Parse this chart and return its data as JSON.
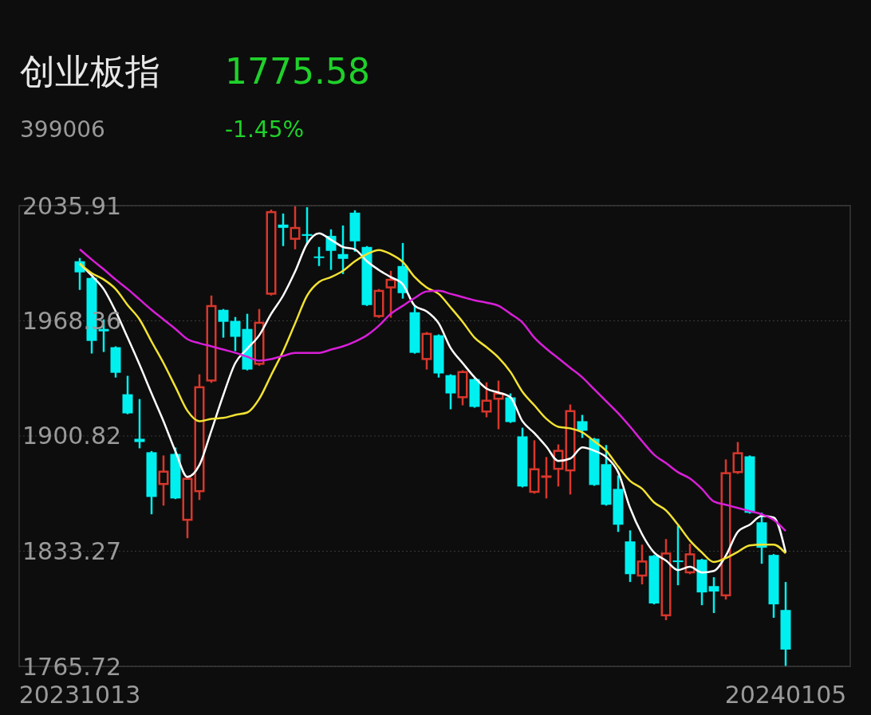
{
  "chart_data": {
    "type": "candlestick",
    "title": "创业板指",
    "subtitle": "399006",
    "annotations": [
      "1775.58",
      "-1.45%"
    ],
    "categories": [
      "20231013",
      null,
      null,
      null,
      null,
      null,
      null,
      null,
      null,
      null,
      null,
      null,
      null,
      null,
      null,
      null,
      null,
      null,
      null,
      null,
      null,
      null,
      null,
      null,
      null,
      null,
      null,
      null,
      null,
      null,
      null,
      null,
      null,
      null,
      null,
      null,
      null,
      null,
      null,
      null,
      null,
      null,
      null,
      null,
      null,
      null,
      null,
      null,
      null,
      null,
      null,
      null,
      null,
      null,
      null,
      null,
      null,
      null,
      null,
      "20240105"
    ],
    "ohlc": [
      [
        2003.3,
        2005.2,
        1986.5,
        1996.8
      ],
      [
        1993.5,
        1994.0,
        1949.2,
        1956.6
      ],
      [
        1963.6,
        1969.2,
        1950.1,
        1962.2
      ],
      [
        1952.9,
        1953.4,
        1935.1,
        1937.9
      ],
      [
        1925.3,
        1936.1,
        1913.6,
        1914.1
      ],
      [
        1899.2,
        1922.5,
        1893.6,
        1897.3
      ],
      [
        1891.3,
        1892.0,
        1854.9,
        1865.1
      ],
      [
        1872.1,
        1889.4,
        1860.0,
        1880.5
      ],
      [
        1890.3,
        1894.1,
        1863.8,
        1864.2
      ],
      [
        1851.1,
        1876.8,
        1840.9,
        1876.3
      ],
      [
        1867.9,
        1937.0,
        1863.3,
        1930.0
      ],
      [
        1932.8,
        1983.2,
        1932.0,
        1977.6
      ],
      [
        1974.8,
        1975.3,
        1958.5,
        1967.8
      ],
      [
        1968.3,
        1970.6,
        1950.6,
        1959.0
      ],
      [
        1963.6,
        1972.5,
        1939.3,
        1939.8
      ],
      [
        1942.6,
        1975.3,
        1942.0,
        1967.8
      ],
      [
        1983.7,
        2033.6,
        1983.2,
        2032.7
      ],
      [
        2024.8,
        2031.3,
        2012.2,
        2022.9
      ],
      [
        2015.9,
        2035.5,
        2010.3,
        2023.4
      ],
      [
        2019.2,
        2035.0,
        2013.6,
        2018.2
      ],
      [
        2006.1,
        2011.7,
        2000.5,
        2005.2
      ],
      [
        2018.2,
        2022.0,
        1998.2,
        2009.4
      ],
      [
        2007.5,
        2024.3,
        1995.8,
        2004.7
      ],
      [
        2031.8,
        2033.2,
        2008.9,
        2015.0
      ],
      [
        2011.7,
        2012.2,
        1977.1,
        1977.6
      ],
      [
        1970.6,
        1987.0,
        1970.1,
        1986.5
      ],
      [
        1987.4,
        1997.7,
        1970.2,
        1993.0
      ],
      [
        2000.5,
        2014.0,
        1981.4,
        1984.6
      ],
      [
        1973.4,
        1977.6,
        1949.1,
        1949.6
      ],
      [
        1945.4,
        1961.8,
        1939.8,
        1961.3
      ],
      [
        1959.9,
        1960.4,
        1935.1,
        1937.5
      ],
      [
        1936.5,
        1937.0,
        1916.5,
        1925.8
      ],
      [
        1923.0,
        1939.4,
        1918.8,
        1938.9
      ],
      [
        1934.2,
        1934.7,
        1917.4,
        1917.9
      ],
      [
        1914.6,
        1932.3,
        1911.8,
        1922.1
      ],
      [
        1922.1,
        1933.3,
        1904.8,
        1926.3
      ],
      [
        1923.5,
        1925.8,
        1908.5,
        1909.0
      ],
      [
        1900.6,
        1905.7,
        1870.7,
        1871.2
      ],
      [
        1867.5,
        1898.3,
        1867.0,
        1881.9
      ],
      [
        1876.8,
        1888.5,
        1864.2,
        1877.7
      ],
      [
        1881.0,
        1895.9,
        1871.2,
        1892.7
      ],
      [
        1880.1,
        1919.3,
        1866.5,
        1916.0
      ],
      [
        1909.5,
        1913.2,
        1899.7,
        1903.9
      ],
      [
        1899.2,
        1899.7,
        1871.6,
        1872.1
      ],
      [
        1884.3,
        1895.5,
        1860.0,
        1860.5
      ],
      [
        1869.8,
        1877.7,
        1844.6,
        1848.8
      ],
      [
        1839.0,
        1845.5,
        1815.2,
        1819.8
      ],
      [
        1818.4,
        1837.1,
        1813.8,
        1827.8
      ],
      [
        1830.6,
        1831.1,
        1802.1,
        1802.6
      ],
      [
        1795.1,
        1840.4,
        1792.8,
        1832.5
      ],
      [
        1827.8,
        1848.3,
        1813.3,
        1826.9
      ],
      [
        1820.3,
        1837.6,
        1819.8,
        1832.0
      ],
      [
        1828.3,
        1828.8,
        1801.6,
        1809.1
      ],
      [
        1812.8,
        1818.0,
        1797.0,
        1809.6
      ],
      [
        1806.8,
        1887.1,
        1804.9,
        1879.6
      ],
      [
        1879.1,
        1897.3,
        1878.6,
        1891.3
      ],
      [
        1888.9,
        1889.4,
        1855.3,
        1855.8
      ],
      [
        1850.2,
        1855.8,
        1825.9,
        1835.3
      ],
      [
        1831.1,
        1831.6,
        1794.2,
        1802.1
      ],
      [
        1798.8,
        1815.2,
        1766.0,
        1775.58
      ]
    ],
    "colors": [
      "#00f0f0",
      "#00f0f0",
      "#00f0f0",
      "#00f0f0",
      "#00f0f0",
      "#00f0f0",
      "#00f0f0",
      "#d8372c",
      "#00f0f0",
      "#d8372c",
      "#d8372c",
      "#d8372c",
      "#00f0f0",
      "#00f0f0",
      "#00f0f0",
      "#d8372c",
      "#d8372c",
      "#00f0f0",
      "#d8372c",
      "#00f0f0",
      "#00f0f0",
      "#00f0f0",
      "#00f0f0",
      "#00f0f0",
      "#00f0f0",
      "#d8372c",
      "#d8372c",
      "#00f0f0",
      "#00f0f0",
      "#d8372c",
      "#00f0f0",
      "#00f0f0",
      "#d8372c",
      "#00f0f0",
      "#d8372c",
      "#d8372c",
      "#00f0f0",
      "#00f0f0",
      "#d8372c",
      "#d8372c",
      "#d8372c",
      "#d8372c",
      "#00f0f0",
      "#00f0f0",
      "#00f0f0",
      "#00f0f0",
      "#00f0f0",
      "#d8372c",
      "#00f0f0",
      "#d8372c",
      "#00f0f0",
      "#d8372c",
      "#00f0f0",
      "#00f0f0",
      "#d8372c",
      "#d8372c",
      "#00f0f0",
      "#00f0f0",
      "#00f0f0",
      "#00f0f0"
    ],
    "series": [
      {
        "type": "line",
        "color": "#ffffff",
        "values": [
          2001.9,
          1994.9,
          1987.0,
          1973.9,
          1958.5,
          1942.6,
          1925.8,
          1909.5,
          1891.8,
          1876.8,
          1883.8,
          1903.9,
          1924.9,
          1943.6,
          1952.0,
          1959.9,
          1972.5,
          1983.2,
          1997.3,
          2013.6,
          2019.7,
          2015.9,
          2011.7,
          2010.3,
          2003.3,
          1998.2,
          1994.0,
          1989.8,
          1977.2,
          1973.9,
          1966.9,
          1952.4,
          1943.6,
          1935.2,
          1928.6,
          1926.3,
          1923.5,
          1909.5,
          1902.5,
          1894.6,
          1886.2,
          1887.6,
          1894.1,
          1892.2,
          1888.5,
          1879.6,
          1858.6,
          1843.2,
          1832.5,
          1827.8,
          1822.2,
          1824.1,
          1820.8,
          1821.7,
          1830.6,
          1844.6,
          1848.8,
          1853.9,
          1853.0,
          1832.5
        ]
      },
      {
        "type": "line",
        "color": "#f2e232",
        "values": [
          2001.9,
          1996.3,
          1992.6,
          1987.0,
          1977.6,
          1969.2,
          1956.2,
          1943.6,
          1929.6,
          1915.6,
          1909.5,
          1910.9,
          1911.4,
          1913.2,
          1914.6,
          1922.6,
          1936.6,
          1950.6,
          1966.9,
          1983.2,
          1991.2,
          1994.0,
          1997.7,
          2003.3,
          2007.5,
          2009.9,
          2007.5,
          2002.9,
          1994.0,
          1987.9,
          1984.2,
          1976.2,
          1967.8,
          1958.5,
          1952.9,
          1946.8,
          1938.4,
          1926.8,
          1918.8,
          1910.9,
          1906.2,
          1905.3,
          1903.0,
          1897.8,
          1892.2,
          1882.9,
          1874.5,
          1869.9,
          1861.9,
          1857.2,
          1848.8,
          1839.5,
          1832.5,
          1826.9,
          1829.2,
          1832.9,
          1836.7,
          1837.1,
          1837.1,
          1832.0
        ]
      },
      {
        "type": "line",
        "color": "#d81fd8",
        "values": [
          2010.3,
          2004.3,
          1998.6,
          1992.6,
          1987.0,
          1980.9,
          1974.8,
          1969.2,
          1963.6,
          1957.6,
          1955.2,
          1953.4,
          1951.5,
          1949.6,
          1947.3,
          1945.0,
          1945.9,
          1947.8,
          1949.6,
          1949.6,
          1949.6,
          1951.5,
          1953.4,
          1956.2,
          1959.9,
          1965.5,
          1972.5,
          1977.2,
          1981.8,
          1985.6,
          1986.0,
          1984.2,
          1982.3,
          1980.4,
          1979.0,
          1977.2,
          1972.5,
          1967.4,
          1958.5,
          1952.0,
          1946.4,
          1940.8,
          1935.2,
          1928.2,
          1921.2,
          1914.2,
          1906.3,
          1897.8,
          1889.9,
          1884.9,
          1879.6,
          1875.9,
          1869.8,
          1862.4,
          1860.5,
          1858.6,
          1856.8,
          1854.9,
          1851.6,
          1845.1
        ]
      }
    ],
    "ylim": [
      1765.72,
      2035.91
    ],
    "yticks": [
      2035.91,
      1968.36,
      1900.82,
      1833.27,
      1765.72
    ],
    "grid": "y"
  }
}
